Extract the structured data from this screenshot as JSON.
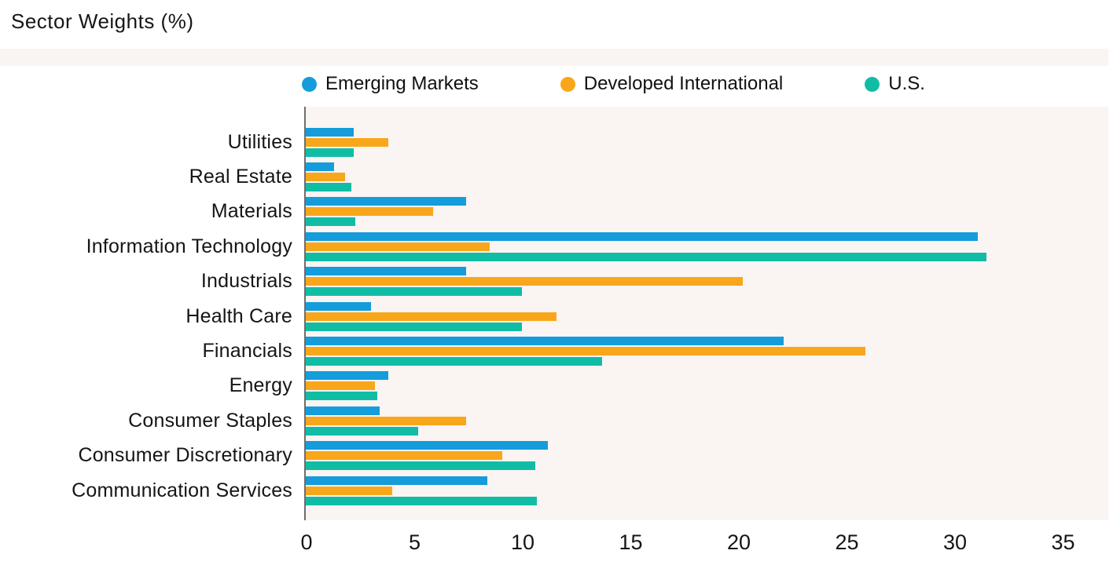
{
  "title": "Sector Weights (%)",
  "legend": [
    {
      "label": "Emerging Markets",
      "color": "#149cdb",
      "icon": "circle-dot"
    },
    {
      "label": "Developed International",
      "color": "#f8a71b",
      "icon": "circle-dot"
    },
    {
      "label": "U.S.",
      "color": "#10bda4",
      "icon": "circle-dot"
    }
  ],
  "chart_data": {
    "type": "bar",
    "orientation": "horizontal",
    "title": "Sector Weights (%)",
    "categories": [
      "Utilities",
      "Real Estate",
      "Materials",
      "Information Technology",
      "Industrials",
      "Health Care",
      "Financials",
      "Energy",
      "Consumer Staples",
      "Consumer Discretionary",
      "Communication Services"
    ],
    "series": [
      {
        "name": "Emerging Markets",
        "color": "#149cdb",
        "values": [
          2.2,
          1.3,
          7.4,
          31.1,
          7.4,
          3.0,
          22.1,
          3.8,
          3.4,
          11.2,
          8.4
        ]
      },
      {
        "name": "Developed International",
        "color": "#f8a71b",
        "values": [
          3.8,
          1.8,
          5.9,
          8.5,
          20.2,
          11.6,
          25.9,
          3.2,
          7.4,
          9.1,
          4.0
        ]
      },
      {
        "name": "U.S.",
        "color": "#10bda4",
        "values": [
          2.2,
          2.1,
          2.3,
          31.5,
          10.0,
          10.0,
          13.7,
          3.3,
          5.2,
          10.6,
          10.7
        ]
      }
    ],
    "xlim": [
      0,
      35
    ],
    "xticks": [
      0,
      5,
      10,
      15,
      20,
      25,
      30,
      35
    ],
    "grid": false,
    "legend_position": "top",
    "plot_background": "#faf4f3",
    "axis_line_color": "#6e6e6e"
  }
}
